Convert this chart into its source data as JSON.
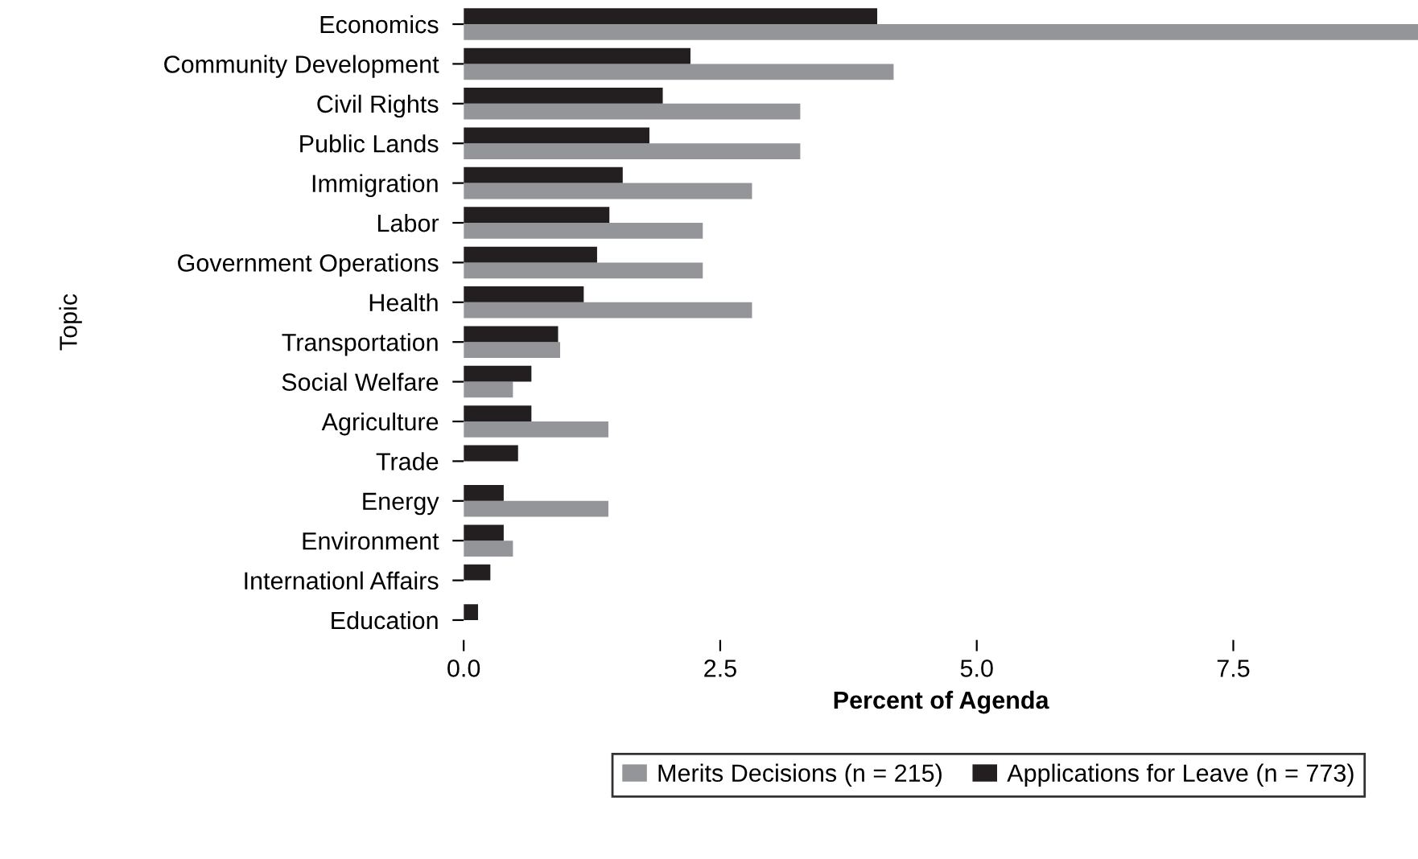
{
  "chart_data": {
    "type": "bar",
    "orientation": "horizontal",
    "xlabel": "Percent of Agenda",
    "ylabel": "Topic",
    "categories": [
      "Economics",
      "Community Development",
      "Civil Rights",
      "Public Lands",
      "Immigration",
      "Labor",
      "Government Operations",
      "Health",
      "Transportation",
      "Social Welfare",
      "Agriculture",
      "Trade",
      "Energy",
      "Environment",
      "Internationl Affairs",
      "Education"
    ],
    "series": [
      {
        "name": "Merits Decisions (n = 215)",
        "color": "#939598",
        "values": [
          9.3,
          4.19,
          3.28,
          3.28,
          2.81,
          2.33,
          2.33,
          2.81,
          0.94,
          0.48,
          1.41,
          null,
          1.41,
          0.48,
          null,
          null
        ]
      },
      {
        "name": "Applications for Leave (n = 773)",
        "color": "#231f20",
        "values": [
          4.03,
          2.21,
          1.94,
          1.81,
          1.55,
          1.42,
          1.3,
          1.17,
          0.92,
          0.66,
          0.66,
          0.53,
          0.39,
          0.39,
          0.26,
          0.14
        ]
      }
    ],
    "xlim": [
      0,
      9.3
    ],
    "xticks": [
      {
        "value": 0,
        "label": "0.0"
      },
      2.5,
      {
        "value": 5,
        "label": "5.0"
      },
      7.5
    ],
    "grid": false,
    "legend": "bottom"
  }
}
